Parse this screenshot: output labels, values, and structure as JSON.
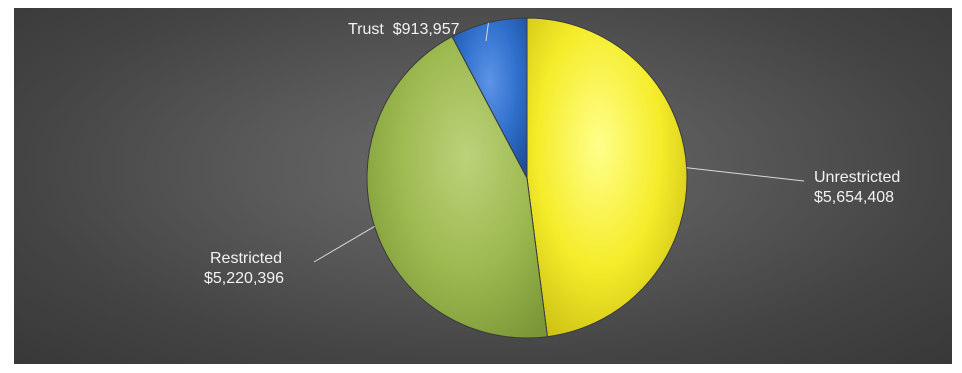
{
  "chart_data": {
    "type": "pie",
    "title": "",
    "slices": [
      {
        "label": "Unrestricted",
        "value": 5654408,
        "display": "$5,654,408",
        "color": "#f5ec2a"
      },
      {
        "label": "Restricted",
        "value": 5220396,
        "display": "$5,220,396",
        "color": "#9cb94f"
      },
      {
        "label": "Trust",
        "value": 913957,
        "display": "$913,957",
        "color": "#2f6fcc"
      }
    ],
    "start_angle_deg": 0,
    "direction": "clockwise",
    "legend": "none",
    "data_labels": "outside with leader lines"
  }
}
